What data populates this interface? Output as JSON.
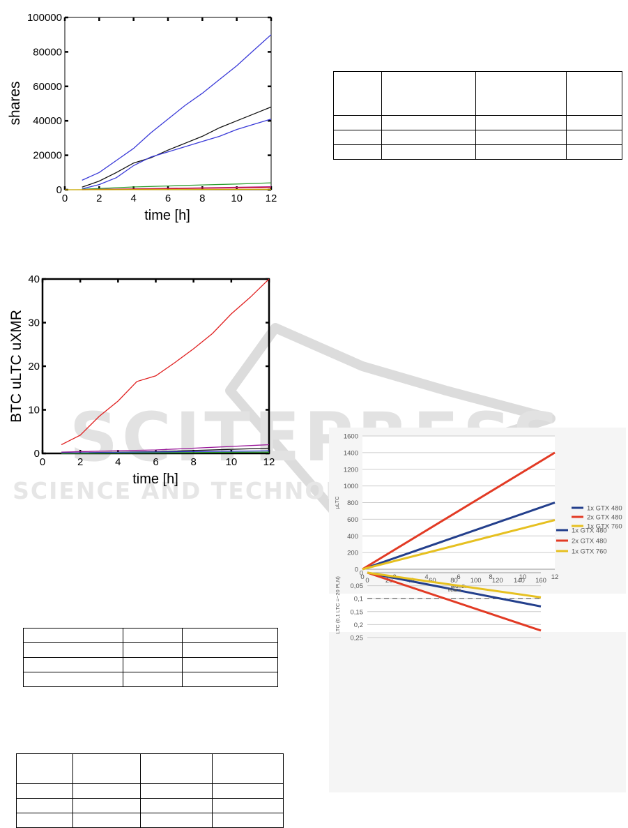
{
  "watermark": {
    "title": "SCITEPRESS",
    "subtitle": "SCIENCE AND TECHNOLOGY PUBLICATIONS"
  },
  "chart_data": [
    {
      "id": "shares-chart",
      "type": "line",
      "title": "",
      "xlabel": "time [h]",
      "ylabel": "shares",
      "xlim": [
        0,
        12
      ],
      "ylim": [
        0,
        100000
      ],
      "xticks": [
        0,
        2,
        4,
        6,
        8,
        10,
        12
      ],
      "yticks": [
        0,
        20000,
        40000,
        60000,
        80000,
        100000
      ],
      "grid": false,
      "series": [
        {
          "color": "#3a3ad8",
          "x": [
            1,
            2,
            3,
            4,
            5,
            6,
            7,
            8,
            9,
            10,
            11,
            12
          ],
          "y": [
            5500,
            10000,
            17000,
            24000,
            33000,
            41000,
            49000,
            56000,
            64000,
            72000,
            81000,
            90000
          ]
        },
        {
          "color": "#111111",
          "x": [
            1,
            2,
            3,
            4,
            5,
            6,
            7,
            8,
            9,
            10,
            11,
            12
          ],
          "y": [
            1500,
            5000,
            10000,
            15500,
            18500,
            23000,
            27000,
            31000,
            36000,
            40000,
            44000,
            48000
          ]
        },
        {
          "color": "#3a3ad8",
          "x": [
            1,
            2,
            3,
            4,
            5,
            6,
            7,
            8,
            9,
            10,
            11,
            12
          ],
          "y": [
            500,
            3000,
            7000,
            14000,
            19000,
            22000,
            25000,
            28000,
            31000,
            35000,
            38000,
            41000
          ]
        },
        {
          "color": "#2e9e2e",
          "x": [
            1,
            2,
            4,
            6,
            8,
            10,
            12
          ],
          "y": [
            300,
            700,
            1600,
            2200,
            2800,
            3300,
            4000
          ]
        },
        {
          "color": "#b41a8a",
          "x": [
            1,
            4,
            8,
            12
          ],
          "y": [
            100,
            500,
            1100,
            1800
          ]
        },
        {
          "color": "#d42020",
          "x": [
            1,
            4,
            8,
            12
          ],
          "y": [
            0,
            400,
            800,
            1200
          ]
        },
        {
          "color": "#c8a800",
          "x": [
            0,
            12
          ],
          "y": [
            0,
            200
          ]
        }
      ]
    },
    {
      "id": "btc-chart",
      "type": "line",
      "title": "",
      "xlabel": "time [h]",
      "ylabel": "BTC uLTC uXMR",
      "xlim": [
        0,
        12
      ],
      "ylim": [
        0,
        40
      ],
      "xticks": [
        0,
        2,
        4,
        6,
        8,
        10,
        12
      ],
      "yticks": [
        0,
        10,
        20,
        30,
        40
      ],
      "grid": false,
      "series": [
        {
          "color": "#e02020",
          "x": [
            1,
            2,
            3,
            4,
            5,
            6,
            7,
            8,
            9,
            10,
            11,
            12
          ],
          "y": [
            2,
            4.2,
            8.5,
            12,
            16.5,
            17.8,
            20.8,
            24,
            27.5,
            32,
            35.8,
            40
          ]
        },
        {
          "color": "#9a1a9a",
          "x": [
            1,
            6,
            12
          ],
          "y": [
            0.3,
            0.8,
            2
          ]
        },
        {
          "color": "#111111",
          "x": [
            1,
            6,
            12
          ],
          "y": [
            0.1,
            0.4,
            1.2
          ]
        },
        {
          "color": "#3a3ad8",
          "x": [
            1,
            12
          ],
          "y": [
            0.1,
            0.6
          ]
        },
        {
          "color": "#2e9e2e",
          "x": [
            1,
            12
          ],
          "y": [
            0,
            0.3
          ]
        }
      ]
    },
    {
      "id": "ultc-month-chart",
      "type": "line",
      "title": "",
      "xlabel": "Month",
      "ylabel": "µLTC",
      "xlim": [
        0,
        12
      ],
      "ylim": [
        0,
        1600
      ],
      "xticks": [
        0,
        2,
        4,
        6,
        8,
        10,
        12
      ],
      "yticks": [
        0,
        200,
        400,
        600,
        800,
        1000,
        1200,
        1400,
        1600
      ],
      "grid": true,
      "legend": "right",
      "series": [
        {
          "name": "1x GTX 480",
          "color": "#233f8c",
          "x": [
            0,
            12
          ],
          "y": [
            0,
            800
          ]
        },
        {
          "name": "2x GTX 480",
          "color": "#e23a24",
          "x": [
            0,
            12
          ],
          "y": [
            0,
            1400
          ]
        },
        {
          "name": "1x GTX 760",
          "color": "#e6c020",
          "x": [
            0,
            12
          ],
          "y": [
            0,
            590
          ]
        }
      ]
    },
    {
      "id": "ltc-years-chart",
      "type": "line",
      "title": "",
      "xlabel": "Years",
      "ylabel": "LTC (0,1 LTC =~20 PLN)",
      "xlim": [
        0,
        160
      ],
      "ylim": [
        0,
        0.25
      ],
      "xticks": [
        "0",
        "20",
        "40",
        "60",
        "80",
        "100",
        "120",
        "140",
        "160"
      ],
      "yticks": [
        "0",
        "0,05",
        "0,1",
        "0,15",
        "0,2",
        "0,25"
      ],
      "grid": true,
      "legend": "right",
      "reference_line": 0.1,
      "series": [
        {
          "name": "1x GTX 480",
          "color": "#233f8c",
          "x": [
            0,
            160
          ],
          "y": [
            0,
            0.13
          ]
        },
        {
          "name": "2x GTX 480",
          "color": "#e23a24",
          "x": [
            0,
            160
          ],
          "y": [
            0,
            0.223
          ]
        },
        {
          "name": "1x GTX 760",
          "color": "#e6c020",
          "x": [
            0,
            160
          ],
          "y": [
            0,
            0.095
          ]
        }
      ]
    }
  ]
}
